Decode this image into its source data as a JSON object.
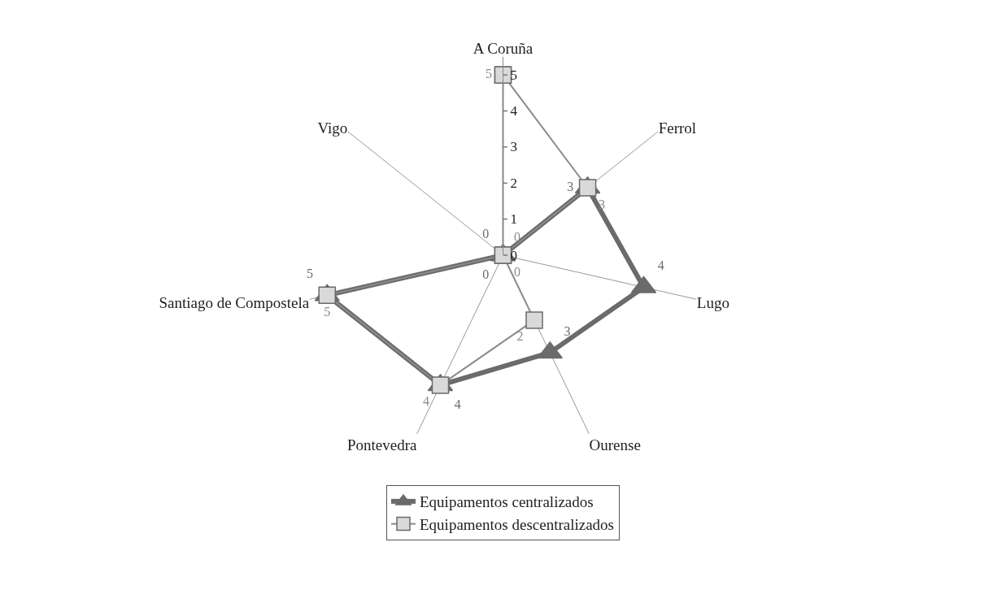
{
  "chart_data": {
    "type": "radar",
    "categories": [
      "A Coruña",
      "Ferrol",
      "Lugo",
      "Ourense",
      "Pontevedra",
      "Santiago de Compostela",
      "Vigo"
    ],
    "series": [
      {
        "name": "Equipamentos centralizados",
        "color": "#6b6b6b",
        "values": [
          0,
          3,
          4,
          3,
          4,
          5,
          0
        ],
        "marker": "triangle",
        "line_style": "solid"
      },
      {
        "name": "Equipamentos descentralizados",
        "color": "#8a8a8a",
        "values": [
          5,
          3,
          0,
          2,
          4,
          5,
          0
        ],
        "marker": "square",
        "line_style": "solid"
      }
    ],
    "ylim": [
      0,
      5.5
    ],
    "yticks": [
      0,
      1,
      2,
      3,
      4,
      5
    ],
    "grid": "x",
    "legend": "bottom",
    "data_labels": true
  }
}
